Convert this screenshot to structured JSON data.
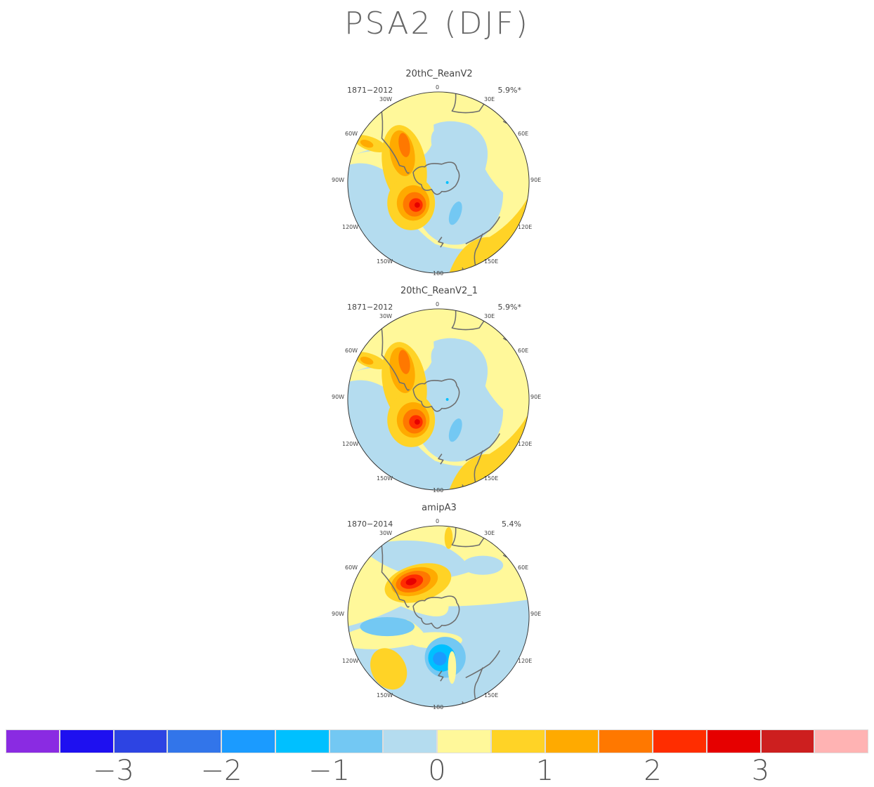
{
  "figure_title": "PSA2 (DJF)",
  "panels": [
    {
      "title": "20thC_ReanV2",
      "period": "1871-2012",
      "variance": "5.9%*",
      "pattern": "A"
    },
    {
      "title": "20thC_ReanV2_1",
      "period": "1871-2012",
      "variance": "5.9%*",
      "pattern": "A"
    },
    {
      "title": "amipA3",
      "period": "1870-2014",
      "variance": "5.4%",
      "pattern": "B"
    }
  ],
  "longitude_labels": {
    "0": "0",
    "30W": "30W",
    "30E": "30E",
    "60W": "60W",
    "60E": "60E",
    "90W": "90W",
    "90E": "90E",
    "120W": "120W",
    "120E": "120E",
    "150W": "150W",
    "150E": "150E",
    "180": "180"
  },
  "colorbar": {
    "colors": [
      "#8a2be2",
      "#1e10f0",
      "#2d44e3",
      "#3275ea",
      "#1b9bff",
      "#00c0ff",
      "#73c8f3",
      "#b4dcef",
      "#fff89a",
      "#ffd326",
      "#ffaa00",
      "#ff7800",
      "#ff2d00",
      "#e60000",
      "#cd1f1f",
      "#ffb3b3"
    ],
    "tick_labels": [
      "-3",
      "-2",
      "-1",
      "0",
      "1",
      "2",
      "3"
    ]
  }
}
